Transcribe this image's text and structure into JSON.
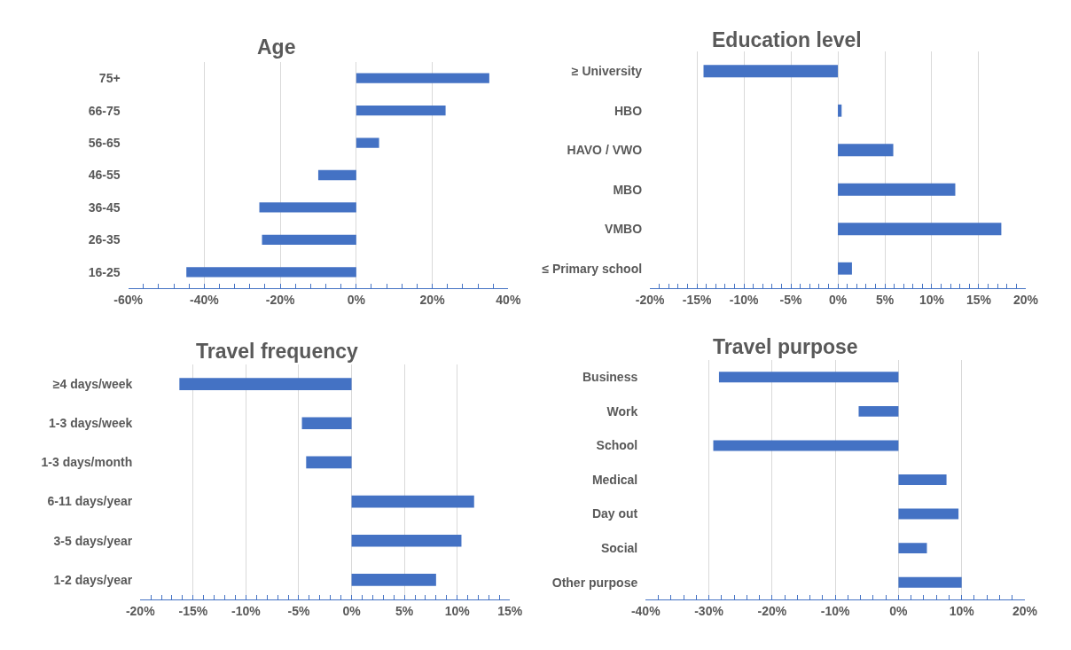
{
  "chart_data": [
    {
      "type": "bar",
      "orientation": "horizontal",
      "title": "Age",
      "categories": [
        "75+",
        "66-75",
        "56-65",
        "46-55",
        "36-45",
        "26-35",
        "16-25"
      ],
      "values": [
        35,
        23.5,
        6,
        -10,
        -25.5,
        -24.8,
        -44.7
      ],
      "color": "#4472c4",
      "xlim": [
        -60,
        40
      ],
      "xticks": [
        {
          "value": -60,
          "label": "-60%"
        },
        {
          "value": -56,
          "label": null
        },
        {
          "value": -52,
          "label": null
        },
        {
          "value": -48,
          "label": null
        },
        {
          "value": -44,
          "label": null
        },
        {
          "value": -40,
          "label": "-40%"
        },
        {
          "value": -36,
          "label": null
        },
        {
          "value": -32,
          "label": null
        },
        {
          "value": -28,
          "label": null
        },
        {
          "value": -24,
          "label": null
        },
        {
          "value": -20,
          "label": "-20%"
        },
        {
          "value": -16,
          "label": null
        },
        {
          "value": -12,
          "label": null
        },
        {
          "value": -8,
          "label": null
        },
        {
          "value": -4,
          "label": null
        },
        {
          "value": 0,
          "label": "0%"
        },
        {
          "value": 4,
          "label": null
        },
        {
          "value": 8,
          "label": null
        },
        {
          "value": 12,
          "label": null
        },
        {
          "value": 16,
          "label": null
        },
        {
          "value": 20,
          "label": "20%"
        },
        {
          "value": 24,
          "label": null
        },
        {
          "value": 28,
          "label": null
        },
        {
          "value": 32,
          "label": null
        },
        {
          "value": 36,
          "label": null
        },
        {
          "value": 40,
          "label": "40%"
        }
      ],
      "grid": "x"
    },
    {
      "type": "bar",
      "orientation": "horizontal",
      "title": "Education level",
      "categories": [
        "≥ University",
        "HBO",
        "HAVO / VWO",
        "MBO",
        "VMBO",
        "≤ Primary school"
      ],
      "values": [
        -14.3,
        0.4,
        5.9,
        12.5,
        17.4,
        1.5
      ],
      "color": "#4472c4",
      "xlim": [
        -20,
        20
      ],
      "xticks": [
        {
          "value": -20,
          "label": "-20%"
        },
        {
          "value": -19,
          "label": null
        },
        {
          "value": -18,
          "label": null
        },
        {
          "value": -17,
          "label": null
        },
        {
          "value": -16,
          "label": null
        },
        {
          "value": -15,
          "label": "-15%"
        },
        {
          "value": -14,
          "label": null
        },
        {
          "value": -13,
          "label": null
        },
        {
          "value": -12,
          "label": null
        },
        {
          "value": -11,
          "label": null
        },
        {
          "value": -10,
          "label": "-10%"
        },
        {
          "value": -9,
          "label": null
        },
        {
          "value": -8,
          "label": null
        },
        {
          "value": -7,
          "label": null
        },
        {
          "value": -6,
          "label": null
        },
        {
          "value": -5,
          "label": "-5%"
        },
        {
          "value": -4,
          "label": null
        },
        {
          "value": -3,
          "label": null
        },
        {
          "value": -2,
          "label": null
        },
        {
          "value": -1,
          "label": null
        },
        {
          "value": 0,
          "label": "0%"
        },
        {
          "value": 1,
          "label": null
        },
        {
          "value": 2,
          "label": null
        },
        {
          "value": 3,
          "label": null
        },
        {
          "value": 4,
          "label": null
        },
        {
          "value": 5,
          "label": "5%"
        },
        {
          "value": 6,
          "label": null
        },
        {
          "value": 7,
          "label": null
        },
        {
          "value": 8,
          "label": null
        },
        {
          "value": 9,
          "label": null
        },
        {
          "value": 10,
          "label": "10%"
        },
        {
          "value": 11,
          "label": null
        },
        {
          "value": 12,
          "label": null
        },
        {
          "value": 13,
          "label": null
        },
        {
          "value": 14,
          "label": null
        },
        {
          "value": 15,
          "label": "15%"
        },
        {
          "value": 16,
          "label": null
        },
        {
          "value": 17,
          "label": null
        },
        {
          "value": 18,
          "label": null
        },
        {
          "value": 19,
          "label": null
        },
        {
          "value": 20,
          "label": "20%"
        }
      ],
      "grid": "x"
    },
    {
      "type": "bar",
      "orientation": "horizontal",
      "title": "Travel frequency",
      "categories": [
        "≥4 days/week",
        "1-3 days/week",
        "1-3 days/month",
        "6-11 days/year",
        "3-5 days/year",
        "1-2 days/year"
      ],
      "values": [
        -16.3,
        -4.7,
        -4.3,
        11.6,
        10.4,
        8.0
      ],
      "color": "#4472c4",
      "xlim": [
        -20,
        15
      ],
      "xticks": [
        {
          "value": -20,
          "label": "-20%"
        },
        {
          "value": -19,
          "label": null
        },
        {
          "value": -18,
          "label": null
        },
        {
          "value": -17,
          "label": null
        },
        {
          "value": -16,
          "label": null
        },
        {
          "value": -15,
          "label": "-15%"
        },
        {
          "value": -14,
          "label": null
        },
        {
          "value": -13,
          "label": null
        },
        {
          "value": -12,
          "label": null
        },
        {
          "value": -11,
          "label": null
        },
        {
          "value": -10,
          "label": "-10%"
        },
        {
          "value": -9,
          "label": null
        },
        {
          "value": -8,
          "label": null
        },
        {
          "value": -7,
          "label": null
        },
        {
          "value": -6,
          "label": null
        },
        {
          "value": -5,
          "label": "-5%"
        },
        {
          "value": -4,
          "label": null
        },
        {
          "value": -3,
          "label": null
        },
        {
          "value": -2,
          "label": null
        },
        {
          "value": -1,
          "label": null
        },
        {
          "value": 0,
          "label": "0%"
        },
        {
          "value": 1,
          "label": null
        },
        {
          "value": 2,
          "label": null
        },
        {
          "value": 3,
          "label": null
        },
        {
          "value": 4,
          "label": null
        },
        {
          "value": 5,
          "label": "5%"
        },
        {
          "value": 6,
          "label": null
        },
        {
          "value": 7,
          "label": null
        },
        {
          "value": 8,
          "label": null
        },
        {
          "value": 9,
          "label": null
        },
        {
          "value": 10,
          "label": "10%"
        },
        {
          "value": 11,
          "label": null
        },
        {
          "value": 12,
          "label": null
        },
        {
          "value": 13,
          "label": null
        },
        {
          "value": 14,
          "label": null
        },
        {
          "value": 15,
          "label": "15%"
        }
      ],
      "grid": "x"
    },
    {
      "type": "bar",
      "orientation": "horizontal",
      "title": "Travel purpose",
      "categories": [
        "Business",
        "Work",
        "School",
        "Medical",
        "Day out",
        "Social",
        "Other purpose"
      ],
      "values": [
        -28.4,
        -6.3,
        -29.3,
        7.6,
        9.5,
        4.5,
        10.0
      ],
      "color": "#4472c4",
      "xlim": [
        -40,
        20
      ],
      "xticks": [
        {
          "value": -40,
          "label": "-40%"
        },
        {
          "value": -38,
          "label": null
        },
        {
          "value": -36,
          "label": null
        },
        {
          "value": -34,
          "label": null
        },
        {
          "value": -32,
          "label": null
        },
        {
          "value": -30,
          "label": "-30%"
        },
        {
          "value": -28,
          "label": null
        },
        {
          "value": -26,
          "label": null
        },
        {
          "value": -24,
          "label": null
        },
        {
          "value": -22,
          "label": null
        },
        {
          "value": -20,
          "label": "-20%"
        },
        {
          "value": -18,
          "label": null
        },
        {
          "value": -16,
          "label": null
        },
        {
          "value": -14,
          "label": null
        },
        {
          "value": -12,
          "label": null
        },
        {
          "value": -10,
          "label": "-10%"
        },
        {
          "value": -8,
          "label": null
        },
        {
          "value": -6,
          "label": null
        },
        {
          "value": -4,
          "label": null
        },
        {
          "value": -2,
          "label": null
        },
        {
          "value": 0,
          "label": "0%"
        },
        {
          "value": 2,
          "label": null
        },
        {
          "value": 4,
          "label": null
        },
        {
          "value": 6,
          "label": null
        },
        {
          "value": 8,
          "label": null
        },
        {
          "value": 10,
          "label": "10%"
        },
        {
          "value": 12,
          "label": null
        },
        {
          "value": 14,
          "label": null
        },
        {
          "value": 16,
          "label": null
        },
        {
          "value": 18,
          "label": null
        },
        {
          "value": 20,
          "label": "20%"
        }
      ],
      "grid": "x"
    }
  ]
}
